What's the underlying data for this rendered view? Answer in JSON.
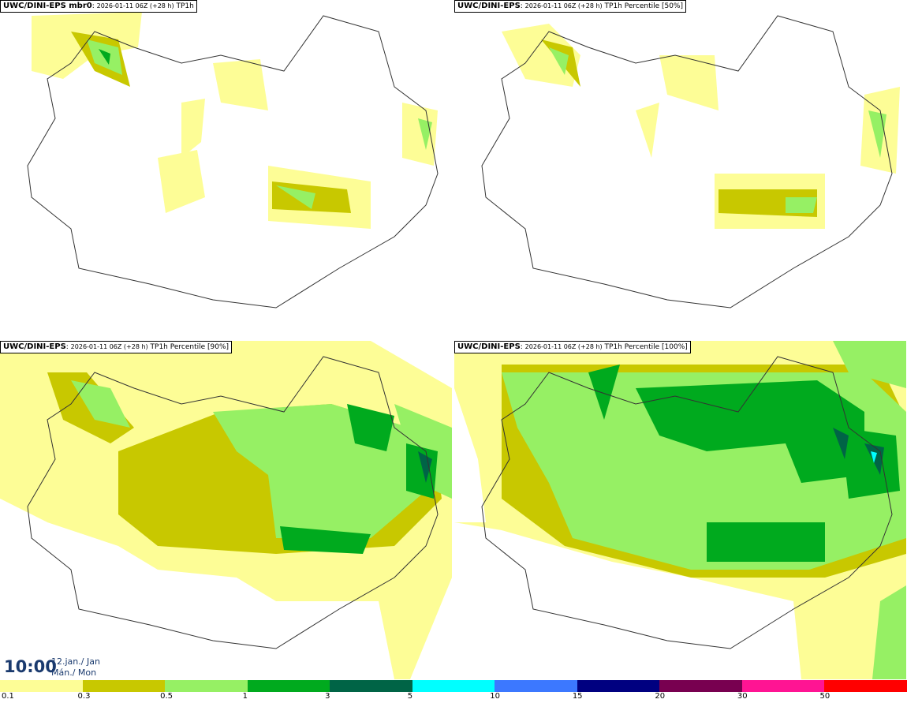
{
  "panels": [
    {
      "model": "UWC/DINI-EPS mbr0",
      "run": "2026-01-11 06Z (+28 h)",
      "field": "TP1h"
    },
    {
      "model": "UWC/DINI-EPS",
      "run": "2026-01-11 06Z (+28 h)",
      "field": "TP1h Percentile [50%]"
    },
    {
      "model": "UWC/DINI-EPS",
      "run": "2026-01-11 06Z (+28 h)",
      "field": "TP1h Percentile [90%]"
    },
    {
      "model": "UWC/DINI-EPS",
      "run": "2026-01-11 06Z (+28 h)",
      "field": "TP1h Percentile [100%]"
    }
  ],
  "valid_time": {
    "time": "10:00",
    "date_line1": "12.jan./ Jan",
    "date_line2": "Mán./ Mon"
  },
  "colorbar": {
    "colors": [
      "#fdfd96",
      "#c8c800",
      "#96f064",
      "#00aa1e",
      "#006446",
      "#00ffff",
      "#3c78ff",
      "#000080",
      "#780050",
      "#ff1493",
      "#ff0000"
    ],
    "ticks": [
      "0.1",
      "0.3",
      "0.5",
      "1",
      "3",
      "5",
      "10",
      "15",
      "20",
      "30",
      "50"
    ]
  }
}
